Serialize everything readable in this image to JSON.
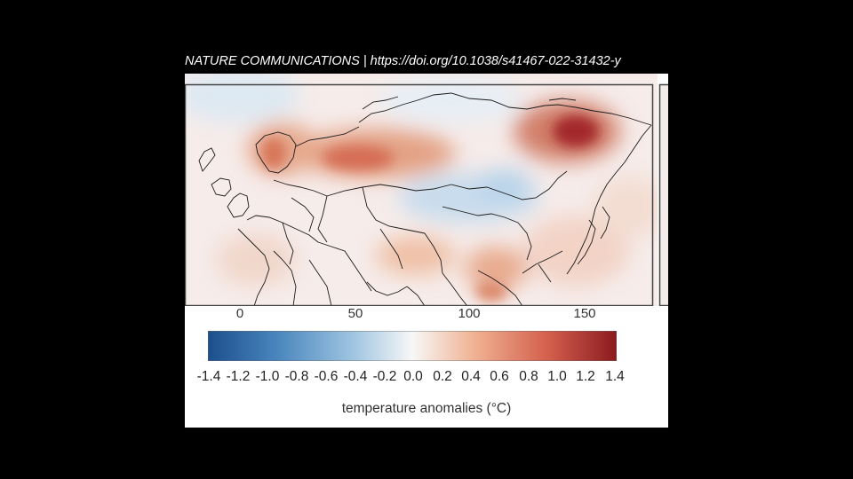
{
  "citation": "NATURE COMMUNICATIONS | https://doi.org/10.1038/s41467-022-31432-y",
  "map": {
    "x_ticks": [
      "0",
      "50",
      "100",
      "150"
    ],
    "colorbar": {
      "ticks": [
        "-1.4",
        "-1.2",
        "-1.0",
        "-0.8",
        "-0.6",
        "-0.4",
        "-0.2",
        "0.0",
        "0.2",
        "0.4",
        "0.6",
        "0.8",
        "1.0",
        "1.2",
        "1.4"
      ],
      "label": "temperature anomalies (°C)",
      "colors": [
        "#1b4f8c",
        "#4a86bd",
        "#9cc3e0",
        "#f7f7f7",
        "#f0b393",
        "#d4604d",
        "#8b1a1f"
      ]
    }
  }
}
